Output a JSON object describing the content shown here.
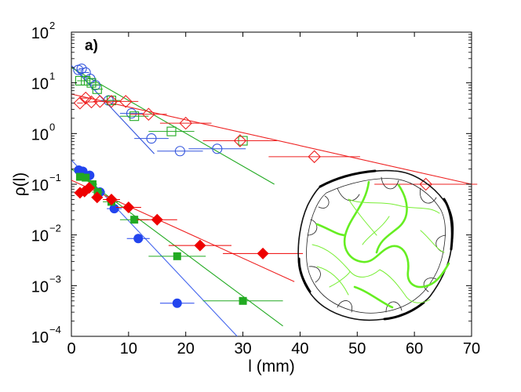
{
  "chart_data": {
    "type": "scatter",
    "panel_label": "a)",
    "xlabel": "l (mm)",
    "ylabel": "ρ(l)",
    "xlim": [
      0,
      70
    ],
    "ylim_log10": [
      -4,
      2
    ],
    "yscale": "log",
    "x_ticks": [
      0,
      10,
      20,
      30,
      40,
      50,
      60,
      70
    ],
    "x_tick_labels": [
      "0",
      "10",
      "20",
      "30",
      "40",
      "50",
      "60",
      "70"
    ],
    "y_ticks_log10": [
      -4,
      -3,
      -2,
      -1,
      0,
      1,
      2
    ],
    "y_tick_base": "10",
    "y_tick_exponents": [
      "−4",
      "−3",
      "−2",
      "−1",
      "0",
      "1",
      "2"
    ],
    "series": [
      {
        "name": "open circles",
        "color": "#3355dd",
        "marker": "circle",
        "filled": false,
        "x": [
          1.2,
          1.8,
          2.5,
          3.3,
          4.2,
          6.5,
          10.5,
          14,
          19,
          25.5
        ],
        "y": [
          18,
          19,
          16,
          12,
          9,
          4.5,
          2.5,
          0.8,
          0.45,
          0.5
        ],
        "xerr": [
          0.4,
          0.5,
          0.6,
          0.7,
          0.9,
          1.3,
          2,
          3,
          4,
          5
        ]
      },
      {
        "name": "open squares",
        "color": "#22aa22",
        "marker": "square",
        "filled": false,
        "x": [
          1.5,
          2.5,
          3.5,
          4.5,
          7,
          11,
          17.5,
          30
        ],
        "y": [
          11,
          11,
          10,
          7.5,
          4.5,
          2.2,
          1.1,
          0.72
        ],
        "xerr": [
          0.5,
          0.7,
          0.8,
          1,
          1.5,
          2.5,
          4,
          6
        ]
      },
      {
        "name": "open diamonds",
        "color": "#ee2222",
        "marker": "diamond",
        "filled": false,
        "x": [
          1.5,
          2.5,
          3.5,
          5,
          7,
          9.5,
          13.5,
          20,
          29.5,
          42.5,
          62
        ],
        "y": [
          4,
          5,
          4.2,
          4.3,
          4.3,
          4.3,
          2.4,
          1.6,
          0.72,
          0.35,
          0.1
        ],
        "xerr": [
          0.5,
          0.7,
          0.9,
          1.2,
          1.6,
          2.2,
          3.2,
          4.5,
          6.5,
          8,
          9
        ]
      },
      {
        "name": "filled circles",
        "color": "#2244ee",
        "marker": "circle",
        "filled": true,
        "x": [
          1.3,
          2,
          3.2,
          5,
          7.5,
          11.7,
          18.5
        ],
        "y": [
          0.19,
          0.18,
          0.15,
          0.07,
          0.033,
          0.0085,
          0.00045
        ],
        "xerr": [
          0.4,
          0.5,
          0.6,
          0.9,
          1.3,
          2,
          3
        ]
      },
      {
        "name": "filled squares",
        "color": "#22aa22",
        "marker": "square",
        "filled": true,
        "x": [
          1.5,
          2.5,
          3.7,
          4.6,
          7,
          11,
          18.5,
          30
        ],
        "y": [
          0.14,
          0.135,
          0.1,
          0.07,
          0.045,
          0.02,
          0.0038,
          0.0005
        ],
        "xerr": [
          0.5,
          0.7,
          0.8,
          1,
          1.5,
          2.5,
          5,
          7
        ]
      },
      {
        "name": "filled diamonds",
        "color": "#ee0000",
        "marker": "diamond",
        "filled": true,
        "x": [
          1.5,
          2.3,
          3.1,
          4.5,
          7,
          10,
          15,
          22.5,
          33.5
        ],
        "y": [
          0.068,
          0.072,
          0.085,
          0.055,
          0.05,
          0.035,
          0.02,
          0.0062,
          0.0043
        ],
        "xerr": [
          0.5,
          0.6,
          0.7,
          1,
          1.5,
          2.2,
          3.5,
          5.5,
          7
        ]
      }
    ],
    "fit_lines": [
      {
        "name": "blue fit (open)",
        "color": "#3355dd",
        "x": [
          0,
          14.5
        ],
        "y": [
          22,
          0.4
        ]
      },
      {
        "name": "green fit (open)",
        "color": "#22aa22",
        "x": [
          0,
          35.5
        ],
        "y": [
          20,
          0.1
        ]
      },
      {
        "name": "red fit (open)",
        "color": "#ee2222",
        "x": [
          0,
          70
        ],
        "y": [
          6,
          0.1
        ]
      },
      {
        "name": "blue fit (filled)",
        "color": "#4466ee",
        "x": [
          0,
          29
        ],
        "y": [
          0.3,
          0.0001
        ]
      },
      {
        "name": "green fit (filled)",
        "color": "#22aa22",
        "x": [
          0,
          37
        ],
        "y": [
          0.2,
          0.00016
        ]
      },
      {
        "name": "red fit (filled)",
        "color": "#ee2222",
        "x": [
          0,
          39
        ],
        "y": [
          0.12,
          0.0012
        ]
      }
    ],
    "inset": "crack network drawing with highlighted (green) path network"
  }
}
